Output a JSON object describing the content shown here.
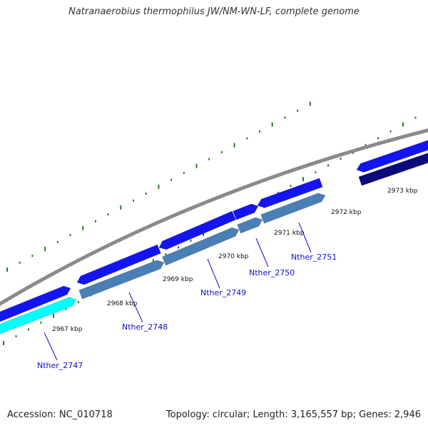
{
  "header": {
    "title": "Natranaerobius thermophilus JW/NM-WN-LF, complete genome"
  },
  "footer": {
    "accession": "Accession: NC_010718",
    "summary": "Topology: circular; Length: 3,165,557 bp; Genes: 2,946"
  },
  "colors": {
    "backbone": "#8a8a8a",
    "forward_cds": "#1414f0",
    "reverse_cds": "#4a7fb5",
    "reverse_cds_selected": "#00ffff",
    "forward_cds_dark": "#0a0a7a",
    "gc_marks": "#2a7a2a",
    "gene_label": "#1010cc"
  },
  "scale": {
    "tick_labels": [
      "2967 kbp",
      "2968 kbp",
      "2969 kbp",
      "2970 kbp",
      "2971 kbp",
      "2972 kbp",
      "2973 kbp"
    ]
  },
  "genes": [
    {
      "label": "Nther_2747"
    },
    {
      "label": "Nther_2748"
    },
    {
      "label": "Nther_2749"
    },
    {
      "label": "Nther_2750"
    },
    {
      "label": "Nther_2751"
    }
  ]
}
